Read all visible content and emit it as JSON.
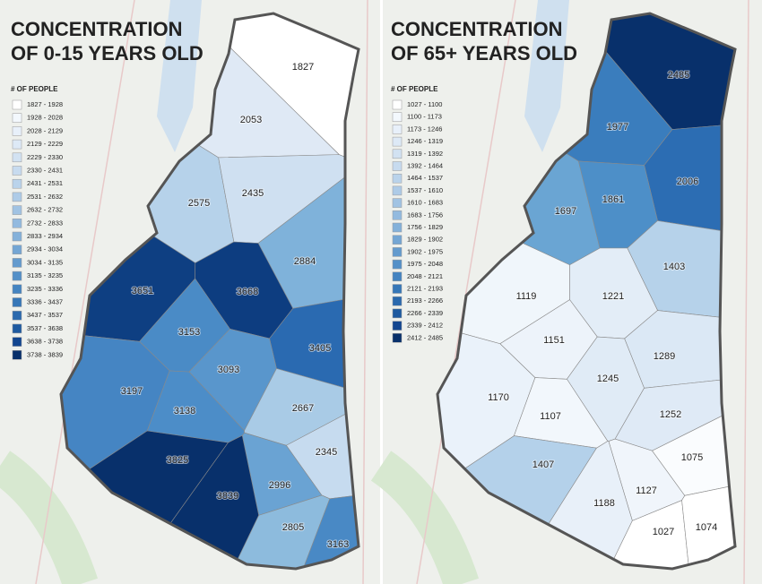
{
  "maps": [
    {
      "title_lines": [
        "CONCENTRATION",
        "OF 0-15 YEARS OLD"
      ],
      "legend_title": "# OF PEOPLE",
      "legend_items": [
        {
          "label": "1827 - 1928",
          "color": "#ffffff"
        },
        {
          "label": "1928 - 2028",
          "color": "#f3f8fd"
        },
        {
          "label": "2028 - 2129",
          "color": "#e8f0fa"
        },
        {
          "label": "2129 - 2229",
          "color": "#dde9f6"
        },
        {
          "label": "2229 - 2330",
          "color": "#d2e2f2"
        },
        {
          "label": "2330 - 2431",
          "color": "#c7dbef"
        },
        {
          "label": "2431 - 2531",
          "color": "#bad3eb"
        },
        {
          "label": "2531 - 2632",
          "color": "#aecbe7"
        },
        {
          "label": "2632 - 2732",
          "color": "#a1c3e3"
        },
        {
          "label": "2732 - 2833",
          "color": "#93badf"
        },
        {
          "label": "2833 - 2934",
          "color": "#84b1da"
        },
        {
          "label": "2934 - 3034",
          "color": "#74a6d4"
        },
        {
          "label": "3034 - 3135",
          "color": "#649bce"
        },
        {
          "label": "3135 - 3235",
          "color": "#5490c8"
        },
        {
          "label": "3235 - 3336",
          "color": "#4484c1"
        },
        {
          "label": "3336 - 3437",
          "color": "#3677b8"
        },
        {
          "label": "3437 - 3537",
          "color": "#2a69ae"
        },
        {
          "label": "3537 - 3638",
          "color": "#1e5aa0"
        },
        {
          "label": "3638 - 3738",
          "color": "#124690"
        },
        {
          "label": "3738 - 3839",
          "color": "#08306b"
        }
      ],
      "districts": [
        {
          "value": 1827,
          "color": "#ffffff"
        },
        {
          "value": 2053,
          "color": "#dfe9f5"
        },
        {
          "value": 2575,
          "color": "#b6d2ea"
        },
        {
          "value": 2435,
          "color": "#cfe0f1"
        },
        {
          "value": 2884,
          "color": "#7fb2da"
        },
        {
          "value": 3651,
          "color": "#0e3f82"
        },
        {
          "value": 3668,
          "color": "#0d3d80"
        },
        {
          "value": 3153,
          "color": "#4a8bc6"
        },
        {
          "value": 3405,
          "color": "#2a6ab1"
        },
        {
          "value": 3093,
          "color": "#5996cc"
        },
        {
          "value": 3197,
          "color": "#4585c3"
        },
        {
          "value": 3138,
          "color": "#4c8dc8"
        },
        {
          "value": 2667,
          "color": "#a9cbe6"
        },
        {
          "value": 2345,
          "color": "#c6dbef"
        },
        {
          "value": 3825,
          "color": "#08306b"
        },
        {
          "value": 2996,
          "color": "#6aa3d3"
        },
        {
          "value": 3839,
          "color": "#08306b"
        },
        {
          "value": 2805,
          "color": "#8dbbdd"
        },
        {
          "value": 3163,
          "color": "#4989c5"
        }
      ]
    },
    {
      "title_lines": [
        "CONCENTRATION",
        "OF 65+ YEARS OLD"
      ],
      "legend_title": "# OF PEOPLE",
      "legend_items": [
        {
          "label": "1027 - 1100",
          "color": "#ffffff"
        },
        {
          "label": "1100 - 1173",
          "color": "#f3f8fd"
        },
        {
          "label": "1173 - 1246",
          "color": "#e8f0fa"
        },
        {
          "label": "1246 - 1319",
          "color": "#dde9f6"
        },
        {
          "label": "1319 - 1392",
          "color": "#d2e2f2"
        },
        {
          "label": "1392 - 1464",
          "color": "#c7dbef"
        },
        {
          "label": "1464 - 1537",
          "color": "#bad3eb"
        },
        {
          "label": "1537 - 1610",
          "color": "#aecbe7"
        },
        {
          "label": "1610 - 1683",
          "color": "#a1c3e3"
        },
        {
          "label": "1683 - 1756",
          "color": "#93badf"
        },
        {
          "label": "1756 - 1829",
          "color": "#84b1da"
        },
        {
          "label": "1829 - 1902",
          "color": "#74a6d4"
        },
        {
          "label": "1902 - 1975",
          "color": "#649bce"
        },
        {
          "label": "1975 - 2048",
          "color": "#5490c8"
        },
        {
          "label": "2048 - 2121",
          "color": "#4484c1"
        },
        {
          "label": "2121 - 2193",
          "color": "#3677b8"
        },
        {
          "label": "2193 - 2266",
          "color": "#2a69ae"
        },
        {
          "label": "2266 - 2339",
          "color": "#1e5aa0"
        },
        {
          "label": "2339 - 2412",
          "color": "#124690"
        },
        {
          "label": "2412 - 2485",
          "color": "#08306b"
        }
      ],
      "districts": [
        {
          "value": 2485,
          "color": "#08306b"
        },
        {
          "value": 1977,
          "color": "#3a7dbd"
        },
        {
          "value": 2006,
          "color": "#2c6db3"
        },
        {
          "value": 1697,
          "color": "#6aa5d3"
        },
        {
          "value": 1861,
          "color": "#4d8fc8"
        },
        {
          "value": 1403,
          "color": "#b6d2ea"
        },
        {
          "value": 1119,
          "color": "#f0f6fb"
        },
        {
          "value": 1221,
          "color": "#e3edf7"
        },
        {
          "value": 1151,
          "color": "#edf3fa"
        },
        {
          "value": 1289,
          "color": "#dbe8f5"
        },
        {
          "value": 1245,
          "color": "#e0ebf6"
        },
        {
          "value": 1170,
          "color": "#eaf2fa"
        },
        {
          "value": 1107,
          "color": "#f2f7fc"
        },
        {
          "value": 1252,
          "color": "#dfeaf6"
        },
        {
          "value": 1407,
          "color": "#b4d1ea"
        },
        {
          "value": 1075,
          "color": "#fafcfe"
        },
        {
          "value": 1127,
          "color": "#f0f5fb"
        },
        {
          "value": 1188,
          "color": "#e8f0f9"
        },
        {
          "value": 1027,
          "color": "#ffffff"
        },
        {
          "value": 1074,
          "color": "#ffffff"
        }
      ]
    }
  ]
}
